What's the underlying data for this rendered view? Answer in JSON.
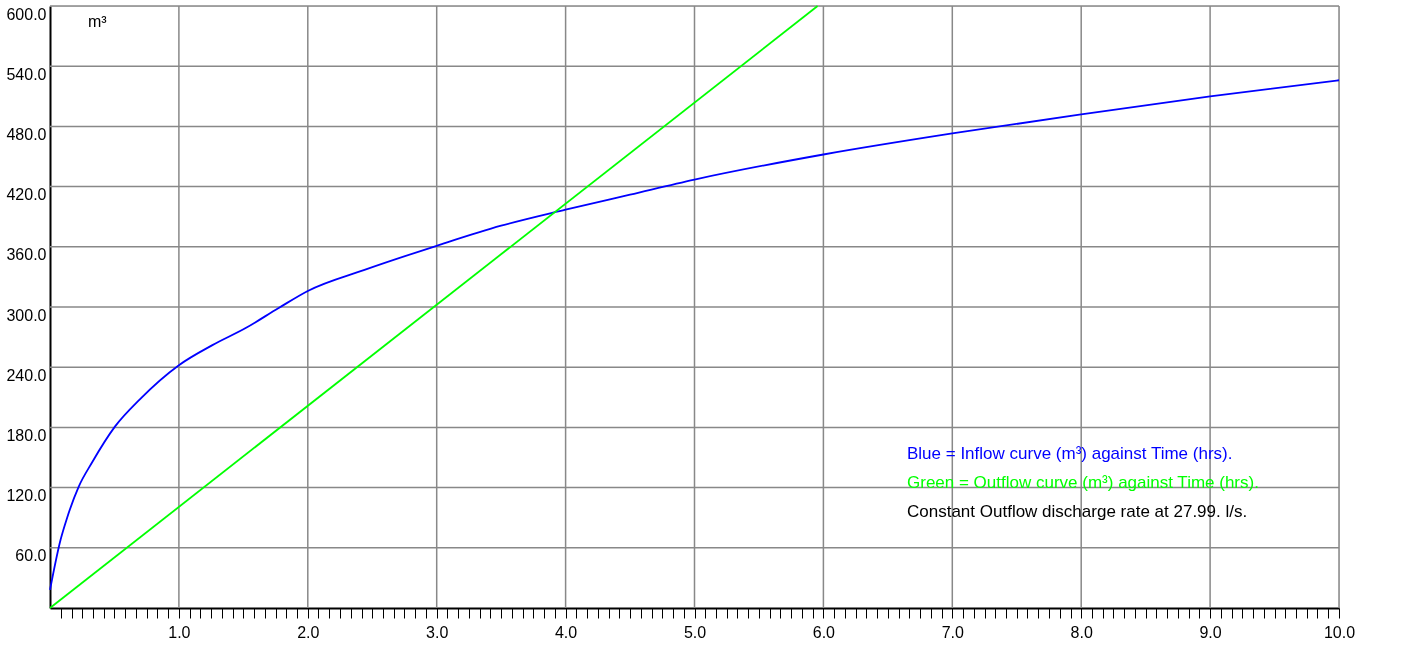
{
  "chart_data": {
    "type": "line",
    "ylabel": "m³",
    "xlim": [
      0,
      10
    ],
    "ylim": [
      0,
      600
    ],
    "xticks": [
      {
        "value": 0.083,
        "label": null
      },
      {
        "value": 0.167,
        "label": null
      },
      {
        "value": 0.25,
        "label": null
      },
      {
        "value": 0.333,
        "label": null
      },
      {
        "value": 0.417,
        "label": null
      },
      {
        "value": 0.5,
        "label": null
      },
      {
        "value": 0.583,
        "label": null
      },
      {
        "value": 0.667,
        "label": null
      },
      {
        "value": 0.75,
        "label": null
      },
      {
        "value": 0.833,
        "label": null
      },
      {
        "value": 0.917,
        "label": null
      },
      {
        "value": 1,
        "label": "1.0"
      },
      {
        "value": 1.083,
        "label": null
      },
      {
        "value": 1.167,
        "label": null
      },
      {
        "value": 1.25,
        "label": null
      },
      {
        "value": 1.333,
        "label": null
      },
      {
        "value": 1.417,
        "label": null
      },
      {
        "value": 1.5,
        "label": null
      },
      {
        "value": 1.583,
        "label": null
      },
      {
        "value": 1.667,
        "label": null
      },
      {
        "value": 1.75,
        "label": null
      },
      {
        "value": 1.833,
        "label": null
      },
      {
        "value": 1.917,
        "label": null
      },
      {
        "value": 2,
        "label": "2.0"
      },
      {
        "value": 2.083,
        "label": null
      },
      {
        "value": 2.167,
        "label": null
      },
      {
        "value": 2.25,
        "label": null
      },
      {
        "value": 2.333,
        "label": null
      },
      {
        "value": 2.417,
        "label": null
      },
      {
        "value": 2.5,
        "label": null
      },
      {
        "value": 2.583,
        "label": null
      },
      {
        "value": 2.667,
        "label": null
      },
      {
        "value": 2.75,
        "label": null
      },
      {
        "value": 2.833,
        "label": null
      },
      {
        "value": 2.917,
        "label": null
      },
      {
        "value": 3,
        "label": "3.0"
      },
      {
        "value": 3.083,
        "label": null
      },
      {
        "value": 3.167,
        "label": null
      },
      {
        "value": 3.25,
        "label": null
      },
      {
        "value": 3.333,
        "label": null
      },
      {
        "value": 3.417,
        "label": null
      },
      {
        "value": 3.5,
        "label": null
      },
      {
        "value": 3.583,
        "label": null
      },
      {
        "value": 3.667,
        "label": null
      },
      {
        "value": 3.75,
        "label": null
      },
      {
        "value": 3.833,
        "label": null
      },
      {
        "value": 3.917,
        "label": null
      },
      {
        "value": 4,
        "label": "4.0"
      },
      {
        "value": 4.083,
        "label": null
      },
      {
        "value": 4.167,
        "label": null
      },
      {
        "value": 4.25,
        "label": null
      },
      {
        "value": 4.333,
        "label": null
      },
      {
        "value": 4.417,
        "label": null
      },
      {
        "value": 4.5,
        "label": null
      },
      {
        "value": 4.583,
        "label": null
      },
      {
        "value": 4.667,
        "label": null
      },
      {
        "value": 4.75,
        "label": null
      },
      {
        "value": 4.833,
        "label": null
      },
      {
        "value": 4.917,
        "label": null
      },
      {
        "value": 5,
        "label": "5.0"
      },
      {
        "value": 5.083,
        "label": null
      },
      {
        "value": 5.167,
        "label": null
      },
      {
        "value": 5.25,
        "label": null
      },
      {
        "value": 5.333,
        "label": null
      },
      {
        "value": 5.417,
        "label": null
      },
      {
        "value": 5.5,
        "label": null
      },
      {
        "value": 5.583,
        "label": null
      },
      {
        "value": 5.667,
        "label": null
      },
      {
        "value": 5.75,
        "label": null
      },
      {
        "value": 5.833,
        "label": null
      },
      {
        "value": 5.917,
        "label": null
      },
      {
        "value": 6,
        "label": "6.0"
      },
      {
        "value": 6.083,
        "label": null
      },
      {
        "value": 6.167,
        "label": null
      },
      {
        "value": 6.25,
        "label": null
      },
      {
        "value": 6.333,
        "label": null
      },
      {
        "value": 6.417,
        "label": null
      },
      {
        "value": 6.5,
        "label": null
      },
      {
        "value": 6.583,
        "label": null
      },
      {
        "value": 6.667,
        "label": null
      },
      {
        "value": 6.75,
        "label": null
      },
      {
        "value": 6.833,
        "label": null
      },
      {
        "value": 6.917,
        "label": null
      },
      {
        "value": 7,
        "label": "7.0"
      },
      {
        "value": 7.083,
        "label": null
      },
      {
        "value": 7.167,
        "label": null
      },
      {
        "value": 7.25,
        "label": null
      },
      {
        "value": 7.333,
        "label": null
      },
      {
        "value": 7.417,
        "label": null
      },
      {
        "value": 7.5,
        "label": null
      },
      {
        "value": 7.583,
        "label": null
      },
      {
        "value": 7.667,
        "label": null
      },
      {
        "value": 7.75,
        "label": null
      },
      {
        "value": 7.833,
        "label": null
      },
      {
        "value": 7.917,
        "label": null
      },
      {
        "value": 8,
        "label": "8.0"
      },
      {
        "value": 8.083,
        "label": null
      },
      {
        "value": 8.167,
        "label": null
      },
      {
        "value": 8.25,
        "label": null
      },
      {
        "value": 8.333,
        "label": null
      },
      {
        "value": 8.417,
        "label": null
      },
      {
        "value": 8.5,
        "label": null
      },
      {
        "value": 8.583,
        "label": null
      },
      {
        "value": 8.667,
        "label": null
      },
      {
        "value": 8.75,
        "label": null
      },
      {
        "value": 8.833,
        "label": null
      },
      {
        "value": 8.917,
        "label": null
      },
      {
        "value": 9,
        "label": "9.0"
      },
      {
        "value": 9.083,
        "label": null
      },
      {
        "value": 9.167,
        "label": null
      },
      {
        "value": 9.25,
        "label": null
      },
      {
        "value": 9.333,
        "label": null
      },
      {
        "value": 9.417,
        "label": null
      },
      {
        "value": 9.5,
        "label": null
      },
      {
        "value": 9.583,
        "label": null
      },
      {
        "value": 9.667,
        "label": null
      },
      {
        "value": 9.75,
        "label": null
      },
      {
        "value": 9.833,
        "label": null
      },
      {
        "value": 9.917,
        "label": null
      },
      {
        "value": 10,
        "label": "10.0"
      }
    ],
    "yticks": [
      {
        "value": 60,
        "label": "60.0"
      },
      {
        "value": 120,
        "label": "120.0"
      },
      {
        "value": 180,
        "label": "180.0"
      },
      {
        "value": 240,
        "label": "240.0"
      },
      {
        "value": 300,
        "label": "300.0"
      },
      {
        "value": 360,
        "label": "360.0"
      },
      {
        "value": 420,
        "label": "420.0"
      },
      {
        "value": 480,
        "label": "480.0"
      },
      {
        "value": 540,
        "label": "540.0"
      },
      {
        "value": 600,
        "label": "600.0"
      }
    ],
    "grid": true,
    "line_style": "solid",
    "marker": "none",
    "series": [
      {
        "color": "#0000ff",
        "x": [
          0,
          0.082,
          0.133,
          0.223,
          0.326,
          0.505,
          0.697,
          1,
          1.26,
          1.518,
          1.774,
          2,
          2.44,
          3,
          3.5,
          4,
          4.5,
          5,
          6,
          7,
          8,
          9,
          10
        ],
        "values": [
          18,
          68,
          90,
          121,
          145,
          181,
          208,
          242,
          262,
          279,
          299,
          316,
          337,
          361,
          381,
          397,
          412,
          427,
          452,
          473,
          492,
          510,
          526
        ]
      },
      {
        "color": "#00ff00",
        "x": [
          0,
          5.955
        ],
        "values": [
          0,
          600
        ]
      }
    ],
    "annotations": [
      "Blue = Inflow curve (m³) against Time (hrs).",
      "Green = Outflow curve (m³) against Time (hrs).",
      "Constant Outflow discharge rate at 27.99. l/s."
    ]
  }
}
